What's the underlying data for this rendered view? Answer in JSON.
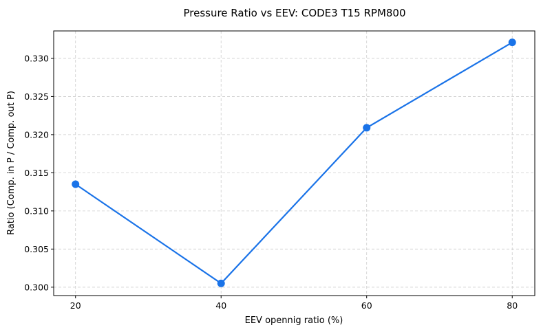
{
  "chart_data": {
    "type": "line",
    "title": "Pressure Ratio vs EEV: CODE3 T15 RPM800",
    "xlabel": "EEV opennig ratio (%)",
    "ylabel": "Ratio (Comp. in P / Comp. out P)",
    "x": [
      20,
      40,
      60,
      80
    ],
    "series": [
      {
        "name": "Pressure Ratio",
        "values": [
          0.3135,
          0.3005,
          0.3209,
          0.3321
        ],
        "color": "#1a73e8"
      }
    ],
    "xticks": [
      20,
      40,
      60,
      80
    ],
    "xtick_labels": [
      "20",
      "40",
      "60",
      "80"
    ],
    "yticks": [
      0.3,
      0.305,
      0.31,
      0.315,
      0.32,
      0.325,
      0.33
    ],
    "ytick_labels": [
      "0.300",
      "0.305",
      "0.310",
      "0.315",
      "0.320",
      "0.325",
      "0.330"
    ],
    "xlim": [
      17,
      83.1
    ],
    "ylim": [
      0.2989,
      0.3336
    ],
    "grid": true,
    "legend": "none"
  }
}
